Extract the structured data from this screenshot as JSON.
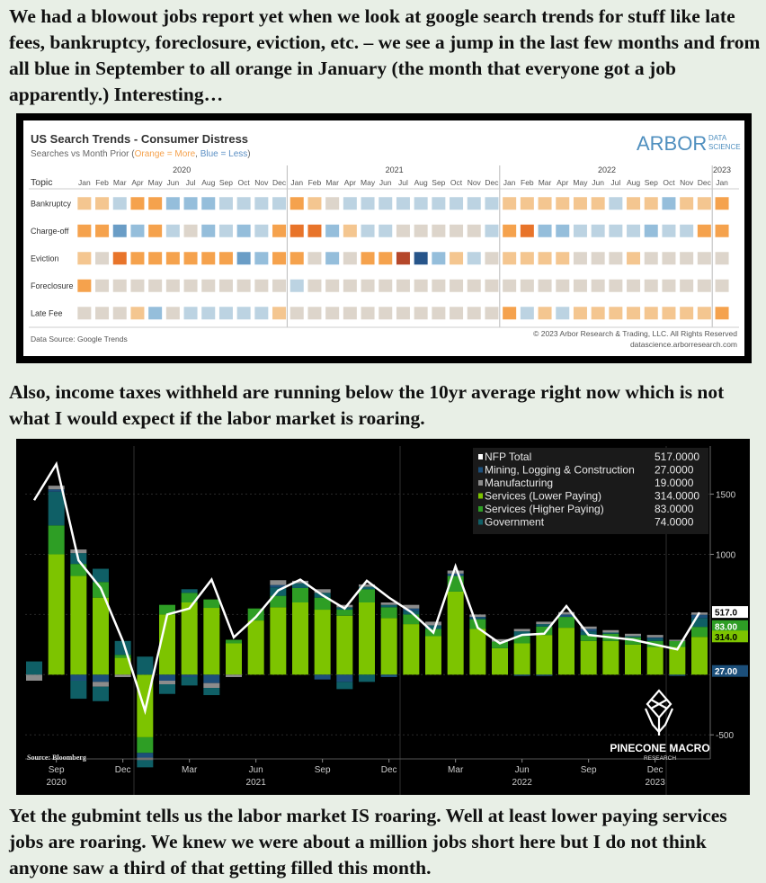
{
  "text": {
    "p1": "We had a blowout jobs report yet when we look at google search trends for stuff like late fees, bankruptcy, foreclosure, eviction, etc. – we see a jump in the last few months and from all blue in September to all orange in January (the month that everyone got a job apparently.) Interesting…",
    "p2": "Also, income taxes withheld are running below the 10yr average right now which is not what I would expect if the labor market is roaring.",
    "p3": "Yet the gubmint tells us the labor market IS roaring. Well at least lower paying services jobs are roaring. We knew we were about a million jobs short here but I do not think anyone saw a third of that getting filled this month."
  },
  "heatmap": {
    "title": "US Search Trends - Consumer Distress",
    "subtitle_prefix": "Searches vs Month Prior (",
    "subtitle_orange": "Orange = More",
    "subtitle_sep": ", ",
    "subtitle_blue": "Blue = Less",
    "subtitle_suffix": ")",
    "logo_main": "ARBOR",
    "logo_sub1": "DATA",
    "logo_sub2": "SCIENCE",
    "topic_header": "Topic",
    "source": "Data Source: Google Trends",
    "copyright": "© 2023 Arbor Research & Trading, LLC. All Rights Reserved",
    "website": "datascience.arborresearch.com",
    "colors": {
      "O3": "#e8742a",
      "O2": "#f5a24d",
      "O1": "#f4c690",
      "N": "#ddd5cb",
      "B1": "#bcd3e2",
      "B2": "#95bedb",
      "B3": "#6a9dc6",
      "R": "#b5472a",
      "D": "#27558a"
    }
  },
  "chart_data": [
    {
      "type": "heatmap",
      "title": "US Search Trends - Consumer Distress",
      "subtitle": "Searches vs Month Prior (Orange = More, Blue = Less)",
      "years": [
        {
          "label": "2020",
          "count": 12
        },
        {
          "label": "2021",
          "count": 12
        },
        {
          "label": "2022",
          "count": 12
        },
        {
          "label": "2023",
          "count": 1
        }
      ],
      "months": [
        "Jan",
        "Feb",
        "Mar",
        "Apr",
        "May",
        "Jun",
        "Jul",
        "Aug",
        "Sep",
        "Oct",
        "Nov",
        "Dec",
        "Jan",
        "Feb",
        "Mar",
        "Apr",
        "May",
        "Jun",
        "Jul",
        "Aug",
        "Sep",
        "Oct",
        "Nov",
        "Dec",
        "Jan",
        "Feb",
        "Mar",
        "Apr",
        "May",
        "Jun",
        "Jul",
        "Aug",
        "Sep",
        "Oct",
        "Nov",
        "Dec",
        "Jan"
      ],
      "rows": [
        {
          "topic": "Bankruptcy",
          "cells": [
            "O1",
            "O1",
            "B1",
            "O2",
            "O2",
            "B2",
            "B2",
            "B2",
            "B1",
            "B1",
            "B1",
            "B1",
            "O2",
            "O1",
            "N",
            "B1",
            "B1",
            "B1",
            "B1",
            "B1",
            "B1",
            "B1",
            "B1",
            "B1",
            "O1",
            "O1",
            "O1",
            "O1",
            "O1",
            "O1",
            "B1",
            "O1",
            "O1",
            "B2",
            "O1",
            "O1",
            "O2"
          ]
        },
        {
          "topic": "Charge-off",
          "cells": [
            "O2",
            "O2",
            "B3",
            "B2",
            "O2",
            "B1",
            "N",
            "B2",
            "B1",
            "B2",
            "B1",
            "O2",
            "O3",
            "O3",
            "B2",
            "O1",
            "B1",
            "B1",
            "N",
            "N",
            "N",
            "N",
            "N",
            "B1",
            "O2",
            "O3",
            "B2",
            "B2",
            "B1",
            "B1",
            "B1",
            "B1",
            "B2",
            "B1",
            "B1",
            "O2",
            "O2"
          ]
        },
        {
          "topic": "Eviction",
          "cells": [
            "O1",
            "N",
            "O3",
            "O2",
            "O2",
            "O2",
            "O2",
            "O2",
            "O2",
            "B3",
            "B2",
            "O2",
            "O2",
            "N",
            "B2",
            "N",
            "O2",
            "O2",
            "R",
            "D",
            "B2",
            "O1",
            "B1",
            "N",
            "O1",
            "O1",
            "O1",
            "O1",
            "N",
            "N",
            "N",
            "O1",
            "N",
            "N",
            "N",
            "N",
            "N"
          ]
        },
        {
          "topic": "Foreclosure",
          "cells": [
            "O2",
            "N",
            "N",
            "N",
            "N",
            "N",
            "N",
            "N",
            "N",
            "N",
            "N",
            "N",
            "B1",
            "N",
            "N",
            "N",
            "N",
            "N",
            "N",
            "N",
            "N",
            "N",
            "N",
            "N",
            "N",
            "N",
            "N",
            "N",
            "N",
            "N",
            "N",
            "N",
            "N",
            "N",
            "N",
            "N",
            "N"
          ]
        },
        {
          "topic": "Late Fee",
          "cells": [
            "N",
            "N",
            "N",
            "O1",
            "B2",
            "N",
            "B1",
            "B1",
            "B1",
            "B1",
            "B1",
            "O1",
            "N",
            "N",
            "N",
            "N",
            "N",
            "N",
            "N",
            "N",
            "N",
            "N",
            "N",
            "N",
            "O2",
            "B1",
            "O1",
            "B1",
            "O1",
            "O1",
            "O1",
            "O1",
            "O1",
            "O1",
            "O1",
            "O1",
            "O2"
          ]
        }
      ]
    },
    {
      "type": "bar",
      "stacked": true,
      "source": "Source: Bloomberg",
      "brand": "PINECONE MACRO",
      "brand_sub": "RESEARCH",
      "ylim": [
        -700,
        1900
      ],
      "yticks": [
        1500,
        1000,
        -500
      ],
      "x_labels": [
        {
          "i": 1,
          "month": "Sep",
          "year": "2020"
        },
        {
          "i": 4,
          "month": "Dec",
          "year": ""
        },
        {
          "i": 7,
          "month": "Mar",
          "year": ""
        },
        {
          "i": 10,
          "month": "Jun",
          "year": "2021"
        },
        {
          "i": 13,
          "month": "Sep",
          "year": ""
        },
        {
          "i": 16,
          "month": "Dec",
          "year": ""
        },
        {
          "i": 19,
          "month": "Mar",
          "year": ""
        },
        {
          "i": 22,
          "month": "Jun",
          "year": "2022"
        },
        {
          "i": 25,
          "month": "Sep",
          "year": ""
        },
        {
          "i": 28,
          "month": "Dec",
          "year": "2023"
        }
      ],
      "series": [
        {
          "name": "Services (Lower Paying)",
          "color": "#7dc400",
          "values": [
            0,
            1000,
            820,
            640,
            140,
            -520,
            500,
            600,
            555,
            260,
            450,
            560,
            600,
            540,
            490,
            600,
            470,
            420,
            320,
            690,
            380,
            220,
            260,
            330,
            390,
            280,
            280,
            250,
            230,
            230,
            314
          ]
        },
        {
          "name": "Services (Higher Paying)",
          "color": "#2e9e25",
          "values": [
            0,
            240,
            100,
            130,
            25,
            -130,
            80,
            80,
            70,
            30,
            100,
            95,
            120,
            100,
            50,
            110,
            90,
            80,
            60,
            130,
            80,
            55,
            60,
            70,
            90,
            50,
            60,
            60,
            50,
            50,
            83
          ]
        },
        {
          "name": "Government",
          "color": "#0f5f66",
          "values": [
            110,
            280,
            90,
            110,
            115,
            150,
            0,
            30,
            0,
            0,
            0,
            70,
            40,
            40,
            20,
            20,
            20,
            30,
            30,
            0,
            10,
            0,
            40,
            20,
            0,
            30,
            10,
            10,
            20,
            0,
            74
          ]
        },
        {
          "name": "Mining, Logging & Construction",
          "color": "#1c4f7a",
          "values": [
            0,
            20,
            -50,
            -60,
            0,
            -40,
            -50,
            -20,
            -70,
            0,
            0,
            20,
            0,
            -40,
            -60,
            0,
            -20,
            20,
            0,
            20,
            10,
            0,
            -10,
            -10,
            20,
            20,
            0,
            0,
            10,
            -10,
            27
          ]
        },
        {
          "name": "Manufacturing",
          "color": "#8c8c8c",
          "values": [
            -50,
            30,
            30,
            -40,
            -20,
            -20,
            -30,
            0,
            -40,
            -20,
            0,
            40,
            20,
            30,
            20,
            20,
            20,
            30,
            30,
            25,
            20,
            20,
            20,
            20,
            20,
            20,
            20,
            20,
            20,
            10,
            19
          ]
        }
      ],
      "negative_extra": [
        {
          "i": 2,
          "value": -150
        },
        {
          "i": 3,
          "value": -120
        },
        {
          "i": 5,
          "value": -60
        },
        {
          "i": 6,
          "value": -80
        },
        {
          "i": 7,
          "value": -70
        },
        {
          "i": 8,
          "value": -60
        },
        {
          "i": 14,
          "value": -60
        },
        {
          "i": 15,
          "value": -60
        }
      ],
      "nfp_total": {
        "name": "NFP Total",
        "color": "#ffffff",
        "values": [
          1450,
          1750,
          950,
          720,
          280,
          -300,
          500,
          550,
          790,
          310,
          480,
          700,
          790,
          660,
          550,
          780,
          640,
          520,
          350,
          900,
          390,
          260,
          330,
          340,
          570,
          330,
          310,
          290,
          250,
          210,
          517
        ]
      },
      "legend": [
        {
          "name": "NFP Total",
          "value": "517.0000",
          "color": "#ffffff"
        },
        {
          "name": "Mining, Logging & Construction",
          "value": "27.0000",
          "color": "#1c4f7a"
        },
        {
          "name": "Manufacturing",
          "value": "19.0000",
          "color": "#8c8c8c"
        },
        {
          "name": "Services (Lower Paying)",
          "value": "314.0000",
          "color": "#7dc400"
        },
        {
          "name": "Services (Higher Paying)",
          "value": "83.0000",
          "color": "#2e9e25"
        },
        {
          "name": "Government",
          "value": "74.0000",
          "color": "#0f5f66"
        }
      ],
      "last_value_tags": [
        {
          "label": "517.0",
          "value": 517,
          "bg": "#ffffff",
          "fg": "#000000"
        },
        {
          "label": "83.00",
          "value": 400,
          "bg": "#2e9e25",
          "fg": "#ffffff"
        },
        {
          "label": "314.0",
          "value": 314,
          "bg": "#7dc400",
          "fg": "#000000"
        },
        {
          "label": "27.00",
          "value": 27,
          "bg": "#1c4f7a",
          "fg": "#ffffff"
        }
      ]
    }
  ]
}
